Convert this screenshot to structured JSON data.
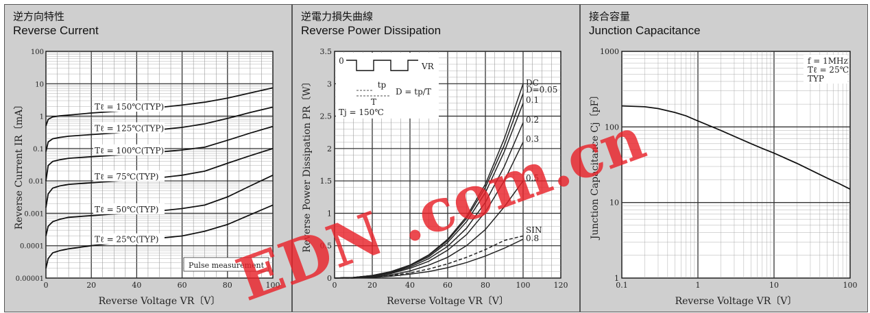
{
  "panels": [
    {
      "title_jp": "逆方向特性",
      "title_en": "Reverse Current"
    },
    {
      "title_jp": "逆電力損失曲線",
      "title_en": "Reverse Power Dissipation"
    },
    {
      "title_jp": "接合容量",
      "title_en": "Junction Capacitance"
    }
  ],
  "chart_data": [
    {
      "type": "line",
      "title": "Reverse Current",
      "xlabel": "Reverse Voltage  VR〔V〕",
      "ylabel": "Reverse Current  IR〔mA〕",
      "xlim": [
        0,
        100
      ],
      "ylim": [
        1e-05,
        100
      ],
      "yscale": "log",
      "grid": true,
      "x_ticks": [
        "0",
        "20",
        "40",
        "60",
        "80",
        "100"
      ],
      "y_ticks": [
        "0.00001",
        "0.0001",
        "0.001",
        "0.01",
        "0.1",
        "1",
        "10",
        "100"
      ],
      "x": [
        0,
        1,
        3,
        6,
        10,
        20,
        30,
        40,
        50,
        60,
        70,
        80,
        90,
        100
      ],
      "series": [
        {
          "name": "Tℓ = 150℃(TYP)",
          "values": [
            0.5,
            0.8,
            0.95,
            1.02,
            1.08,
            1.25,
            1.4,
            1.6,
            1.85,
            2.2,
            2.7,
            3.6,
            5.2,
            7.5
          ]
        },
        {
          "name": "Tℓ = 125℃(TYP)",
          "values": [
            0.08,
            0.16,
            0.2,
            0.22,
            0.24,
            0.27,
            0.3,
            0.34,
            0.38,
            0.45,
            0.58,
            0.85,
            1.3,
            1.9
          ]
        },
        {
          "name": "Tℓ = 100℃(TYP)",
          "values": [
            0.01,
            0.03,
            0.04,
            0.045,
            0.05,
            0.056,
            0.062,
            0.07,
            0.078,
            0.09,
            0.11,
            0.18,
            0.3,
            0.48
          ]
        },
        {
          "name": "Tℓ = 75℃(TYP)",
          "values": [
            0.0015,
            0.004,
            0.006,
            0.007,
            0.0078,
            0.0088,
            0.0098,
            0.011,
            0.0125,
            0.015,
            0.02,
            0.035,
            0.06,
            0.1
          ]
        },
        {
          "name": "Tℓ = 50℃(TYP)",
          "values": [
            0.0002,
            0.0004,
            0.00055,
            0.00065,
            0.00075,
            0.00085,
            0.00095,
            0.00105,
            0.00118,
            0.0014,
            0.0018,
            0.0032,
            0.007,
            0.015
          ]
        },
        {
          "name": "Tℓ = 25℃(TYP)",
          "values": [
            2e-05,
            4e-05,
            6e-05,
            7e-05,
            8e-05,
            0.0001,
            0.00012,
            0.00014,
            0.00017,
            0.0002,
            0.00028,
            0.00045,
            0.0009,
            0.0018
          ]
        }
      ],
      "annotations": [
        "Pulse measurement"
      ]
    },
    {
      "type": "line",
      "title": "Reverse Power Dissipation",
      "xlabel": "Reverse Voltage  VR〔V〕",
      "ylabel": "Reverse Power Dissipation  PR〔W〕",
      "xlim": [
        0,
        120
      ],
      "ylim": [
        0,
        3.5
      ],
      "grid": true,
      "x_ticks": [
        "0",
        "20",
        "40",
        "60",
        "80",
        "100",
        "120"
      ],
      "y_ticks": [
        "0",
        "0.5",
        "1",
        "1.5",
        "2",
        "2.5",
        "3",
        "3.5"
      ],
      "x": [
        0,
        10,
        20,
        30,
        40,
        50,
        60,
        70,
        80,
        90,
        100
      ],
      "series": [
        {
          "name": "DC",
          "values": [
            0,
            0.01,
            0.04,
            0.1,
            0.2,
            0.36,
            0.6,
            0.95,
            1.45,
            2.15,
            3.0
          ]
        },
        {
          "name": "D=0.05",
          "values": [
            0,
            0.01,
            0.04,
            0.1,
            0.2,
            0.35,
            0.58,
            0.92,
            1.4,
            2.05,
            2.85
          ]
        },
        {
          "name": "0.1",
          "values": [
            0,
            0.01,
            0.04,
            0.09,
            0.19,
            0.33,
            0.55,
            0.87,
            1.32,
            1.95,
            2.7
          ]
        },
        {
          "name": "0.2",
          "values": [
            0,
            0.01,
            0.03,
            0.08,
            0.17,
            0.3,
            0.49,
            0.77,
            1.17,
            1.72,
            2.4
          ]
        },
        {
          "name": "0.3",
          "values": [
            0,
            0.01,
            0.03,
            0.07,
            0.15,
            0.26,
            0.43,
            0.67,
            1.02,
            1.5,
            2.1
          ]
        },
        {
          "name": "0.5",
          "values": [
            0,
            0.01,
            0.02,
            0.05,
            0.11,
            0.2,
            0.32,
            0.5,
            0.75,
            1.1,
            1.5
          ]
        },
        {
          "name": "SIN",
          "values": [
            0,
            0.0,
            0.02,
            0.04,
            0.08,
            0.14,
            0.22,
            0.32,
            0.44,
            0.58,
            0.65
          ]
        },
        {
          "name": "0.8",
          "values": [
            0,
            0.0,
            0.01,
            0.03,
            0.06,
            0.1,
            0.16,
            0.24,
            0.34,
            0.46,
            0.6
          ]
        }
      ],
      "inset": {
        "label_zero": "0",
        "label_vr": "VR",
        "label_tp": "tp",
        "label_t": "T",
        "label_d": "D = tp/T"
      },
      "annotations": [
        "Tj = 150℃"
      ]
    },
    {
      "type": "line",
      "title": "Junction Capacitance",
      "xlabel": "Reverse Voltage  VR〔V〕",
      "ylabel": "Junction Capacitance  Cj〔pF〕",
      "xscale": "log",
      "yscale": "log",
      "xlim": [
        0.1,
        100
      ],
      "ylim": [
        1,
        1000
      ],
      "grid": true,
      "x_ticks": [
        "0.1",
        "1",
        "10",
        "100"
      ],
      "y_ticks": [
        "1",
        "10",
        "100",
        "1000"
      ],
      "x": [
        0.1,
        0.2,
        0.3,
        0.5,
        0.7,
        1,
        2,
        3,
        5,
        7,
        10,
        20,
        30,
        50,
        70,
        100
      ],
      "series": [
        {
          "values": [
            190,
            185,
            175,
            155,
            140,
            120,
            90,
            75,
            60,
            52,
            45,
            33,
            27,
            21,
            18,
            15
          ]
        }
      ],
      "annotations": [
        "f = 1MHz",
        "Tℓ = 25℃",
        "TYP"
      ]
    }
  ],
  "watermark": {
    "text": "EDN .com.cn",
    "color": "#e8222a"
  }
}
